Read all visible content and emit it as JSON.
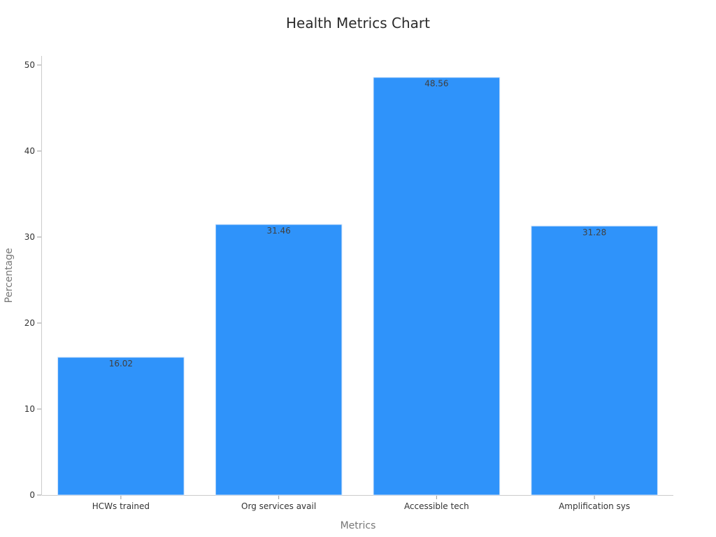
{
  "chart_data": {
    "type": "bar",
    "title": "Health Metrics Chart",
    "xlabel": "Metrics",
    "ylabel": "Percentage",
    "categories": [
      "HCWs trained",
      "Org services avail",
      "Accessible tech",
      "Amplification sys"
    ],
    "values": [
      16.02,
      31.46,
      48.56,
      31.28
    ],
    "data_labels": [
      "16.02",
      "31.46",
      "48.56",
      "31.28"
    ],
    "ylim": [
      0,
      50
    ],
    "yticks": [
      0,
      10,
      20,
      30,
      40,
      50
    ],
    "grid": false,
    "legend": "none",
    "bar_color": "#2f93fa"
  }
}
